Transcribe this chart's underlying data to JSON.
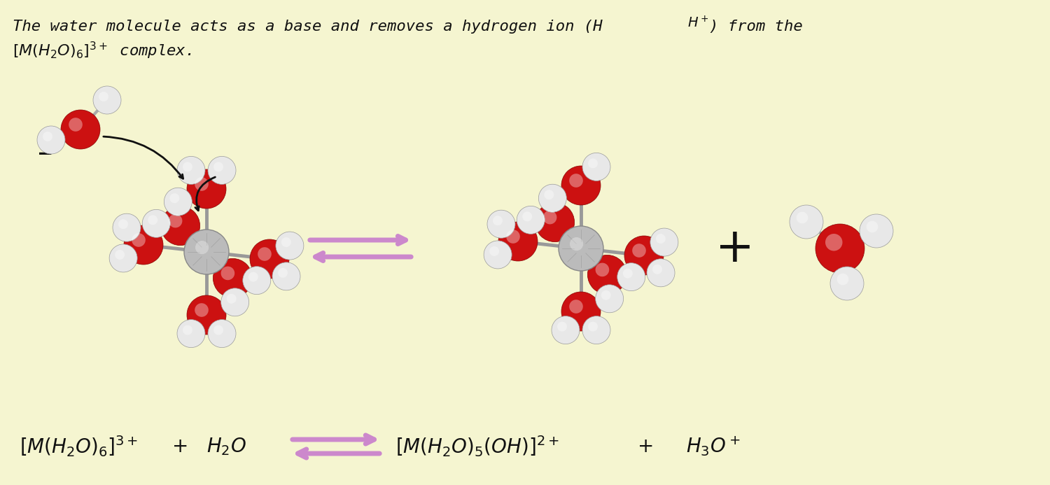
{
  "background_color": "#f5f5d0",
  "arrow_color": "#cc88cc",
  "text_color": "#111111",
  "metal_color": "#aaaaaa",
  "oxygen_color": "#cc1111",
  "hydrogen_color": "#e8e8e8",
  "bond_color": "#999999",
  "font_size_title": 16,
  "font_size_eq": 20,
  "title_line1": "The water molecule acts as a base and removes a hydrogen ion (H",
  "title_h_plus": "+",
  "title_line1_end": ") from the",
  "title_line2": "$[M(H_2O)_6]^{3+}$ complex."
}
